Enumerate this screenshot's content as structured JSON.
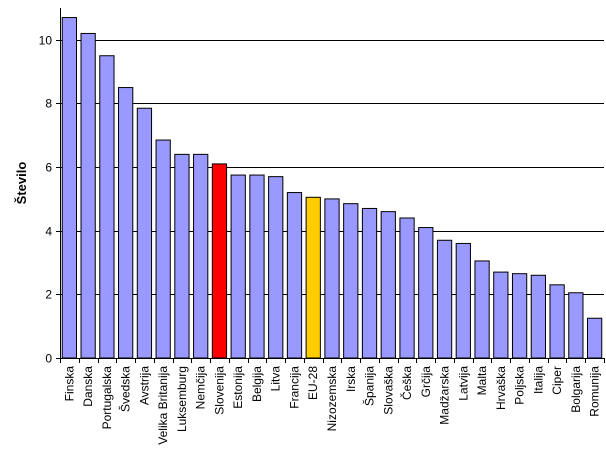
{
  "chart_data": {
    "type": "bar",
    "title": "",
    "xlabel": "",
    "ylabel": "Število",
    "ylim": [
      0,
      11
    ],
    "yticks": [
      0,
      2,
      4,
      6,
      8,
      10
    ],
    "grid": true,
    "categories": [
      "Finska",
      "Danska",
      "Portugalska",
      "Švedska",
      "Avstrija",
      "Velika Britanija",
      "Luksemburg",
      "Nemčija",
      "Slovenija",
      "Estonija",
      "Belgija",
      "Litva",
      "Francija",
      "EU-28",
      "Nizozemska",
      "Irska",
      "Španija",
      "Slovaška",
      "Češka",
      "Grčija",
      "Madžarska",
      "Latvija",
      "Malta",
      "Hrvaška",
      "Poljska",
      "Italija",
      "Ciper",
      "Bolgarija",
      "Romunija"
    ],
    "values": [
      10.7,
      10.2,
      9.5,
      8.5,
      7.85,
      6.85,
      6.4,
      6.4,
      6.1,
      5.75,
      5.75,
      5.7,
      5.2,
      5.05,
      5.0,
      4.85,
      4.7,
      4.6,
      4.4,
      4.1,
      3.7,
      3.6,
      3.05,
      2.7,
      2.65,
      2.6,
      2.3,
      2.05,
      1.25
    ],
    "colors": {
      "default": "#9999ff",
      "highlight": "#ff0000",
      "average": "#ffcc00",
      "outline": "#000000",
      "grid": "#000000"
    },
    "highlight_category": "Slovenija",
    "average_category": "EU-28"
  }
}
